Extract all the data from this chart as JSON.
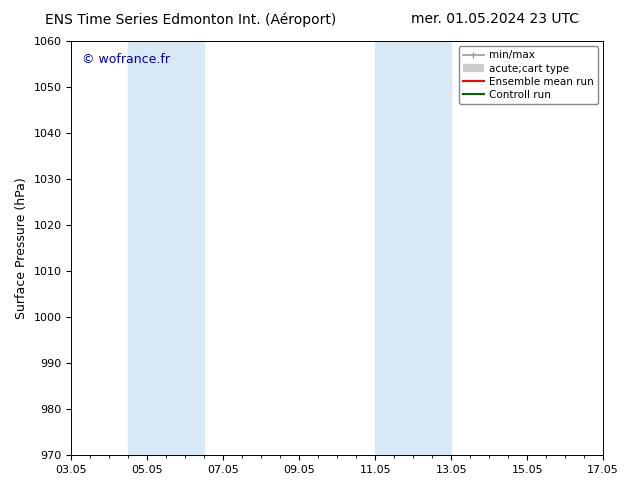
{
  "title_left": "ENS Time Series Edmonton Int. (Aéroport)",
  "title_right": "mer. 01.05.2024 23 UTC",
  "ylabel": "Surface Pressure (hPa)",
  "ylim": [
    970,
    1060
  ],
  "yticks": [
    970,
    980,
    990,
    1000,
    1010,
    1020,
    1030,
    1040,
    1050,
    1060
  ],
  "xlim": [
    0,
    14
  ],
  "xtick_labels": [
    "03.05",
    "05.05",
    "07.05",
    "09.05",
    "11.05",
    "13.05",
    "15.05",
    "17.05"
  ],
  "xtick_positions": [
    0,
    2,
    4,
    6,
    8,
    10,
    12,
    14
  ],
  "watermark": "© wofrance.fr",
  "watermark_color": "#0000bb",
  "bg_color": "#ffffff",
  "plot_bg_color": "#ffffff",
  "shaded_regions": [
    {
      "x_start": 1.5,
      "x_end": 2.5,
      "color": "#d8e8f5"
    },
    {
      "x_start": 2.5,
      "x_end": 3.5,
      "color": "#d8e8f5"
    },
    {
      "x_start": 8.0,
      "x_end": 9.0,
      "color": "#d8e8f5"
    },
    {
      "x_start": 9.0,
      "x_end": 10.0,
      "color": "#d8e8f5"
    }
  ],
  "legend_entries": [
    {
      "label": "min/max",
      "color": "#999999",
      "lw": 1.2,
      "type": "line_caps"
    },
    {
      "label": "acute;cart type",
      "color": "#cccccc",
      "lw": 6,
      "type": "thick"
    },
    {
      "label": "Ensemble mean run",
      "color": "#ff0000",
      "lw": 1.5,
      "type": "line"
    },
    {
      "label": "Controll run",
      "color": "#006600",
      "lw": 1.5,
      "type": "line"
    }
  ],
  "title_fontsize": 10,
  "axis_label_fontsize": 9,
  "tick_fontsize": 8,
  "legend_fontsize": 7.5,
  "watermark_fontsize": 9
}
